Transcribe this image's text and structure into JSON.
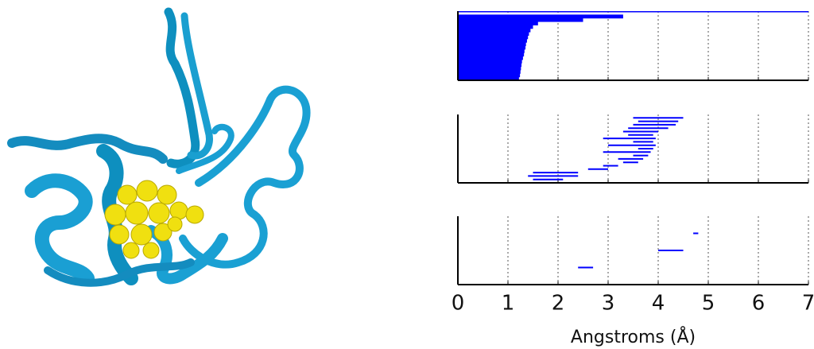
{
  "chart_data": [
    {
      "type": "interval",
      "filled": true,
      "color": "#0000ff",
      "xlim": [
        0,
        7
      ],
      "xticks": [
        0,
        1,
        2,
        3,
        4,
        5,
        6,
        7
      ],
      "grid": true,
      "intervals": [
        [
          0,
          7
        ],
        [
          0,
          3.3
        ],
        [
          0,
          2.5
        ],
        [
          0,
          1.6
        ],
        [
          0,
          1.5
        ],
        [
          0,
          1.45
        ],
        [
          0,
          1.42
        ],
        [
          0,
          1.4
        ],
        [
          0,
          1.38
        ],
        [
          0,
          1.36
        ],
        [
          0,
          1.35
        ],
        [
          0,
          1.33
        ],
        [
          0,
          1.32
        ],
        [
          0,
          1.3
        ],
        [
          0,
          1.28
        ],
        [
          0,
          1.27
        ],
        [
          0,
          1.26
        ],
        [
          0,
          1.25
        ],
        [
          0,
          1.24
        ],
        [
          0,
          1.22
        ]
      ]
    },
    {
      "type": "interval",
      "filled": false,
      "color": "#0000ff",
      "xlim": [
        0,
        7
      ],
      "xticks": [
        0,
        1,
        2,
        3,
        4,
        5,
        6,
        7
      ],
      "grid": true,
      "intervals": [
        [
          3.5,
          4.5
        ],
        [
          3.6,
          4.4
        ],
        [
          3.5,
          4.35
        ],
        [
          3.4,
          4.2
        ],
        [
          3.3,
          4.0
        ],
        [
          3.4,
          3.9
        ],
        [
          2.9,
          3.95
        ],
        [
          3.5,
          3.9
        ],
        [
          3.0,
          3.95
        ],
        [
          3.6,
          3.9
        ],
        [
          2.9,
          3.85
        ],
        [
          3.5,
          3.8
        ],
        [
          3.2,
          3.7
        ],
        [
          3.3,
          3.6
        ],
        [
          2.9,
          3.2
        ],
        [
          2.6,
          3.0
        ],
        [
          1.5,
          2.4
        ],
        [
          1.4,
          2.4
        ],
        [
          1.5,
          2.1
        ]
      ]
    },
    {
      "type": "interval",
      "filled": false,
      "color": "#0000ff",
      "xlim": [
        0,
        7
      ],
      "xticks": [
        0,
        1,
        2,
        3,
        4,
        5,
        6,
        7
      ],
      "grid": true,
      "intervals": [
        [
          4.7,
          4.8
        ],
        [
          4.0,
          4.5
        ],
        [
          2.4,
          2.7
        ]
      ],
      "xlabel": "Angstroms (Å)"
    }
  ]
}
